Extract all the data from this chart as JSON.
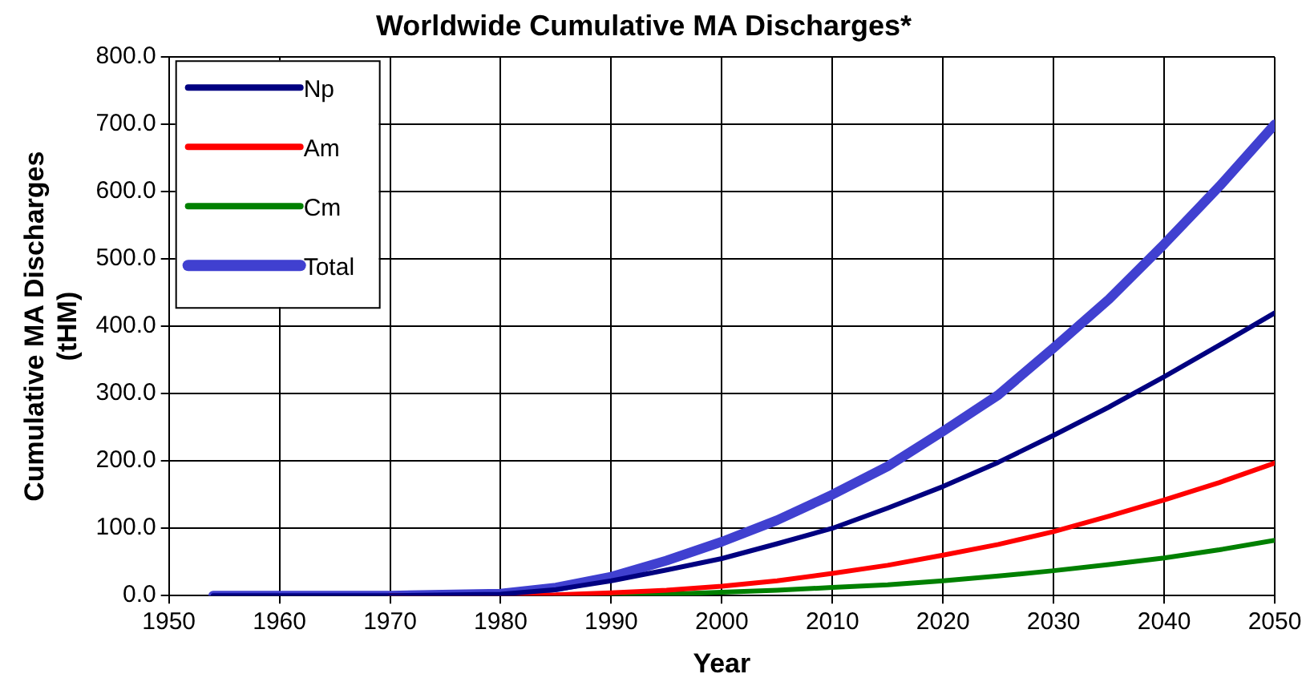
{
  "chart_data": {
    "type": "line",
    "title": "Worldwide Cumulative MA Discharges*",
    "xlabel": "Year",
    "ylabel": "Cumulative MA Discharges\n(tHM)",
    "x": [
      1954,
      1960,
      1970,
      1980,
      1985,
      1990,
      1995,
      2000,
      2005,
      2010,
      2015,
      2020,
      2025,
      2030,
      2035,
      2040,
      2045,
      2050
    ],
    "series": [
      {
        "name": "Np",
        "color": "#000080",
        "values": [
          0,
          0,
          0,
          2,
          9,
          22,
          38,
          55,
          77,
          100,
          130,
          162,
          198,
          238,
          280,
          325,
          372,
          420
        ]
      },
      {
        "name": "Am",
        "color": "#ff0000",
        "values": [
          null,
          null,
          0,
          0,
          1,
          4,
          8,
          14,
          22,
          33,
          45,
          60,
          76,
          95,
          118,
          142,
          168,
          197
        ]
      },
      {
        "name": "Cm",
        "color": "#008000",
        "values": [
          null,
          null,
          null,
          null,
          0,
          1,
          2,
          5,
          8,
          12,
          16,
          22,
          29,
          37,
          46,
          56,
          68,
          82
        ]
      },
      {
        "name": "Total",
        "color": "#4040d0",
        "values": [
          0,
          0,
          0,
          3,
          12,
          28,
          52,
          80,
          112,
          150,
          192,
          244,
          298,
          368,
          440,
          522,
          608,
          700
        ]
      }
    ],
    "xlim": [
      1950,
      2050
    ],
    "xticks": [
      1950,
      1960,
      1970,
      1980,
      1990,
      2000,
      2010,
      2020,
      2030,
      2040,
      2050
    ],
    "ylim": [
      0,
      800
    ],
    "yticks": [
      {
        "value": 0,
        "label": "0.0"
      },
      {
        "value": 100,
        "label": "100.0"
      },
      {
        "value": 200,
        "label": "200.0"
      },
      {
        "value": 300,
        "label": "300.0"
      },
      {
        "value": 400,
        "label": "400.0"
      },
      {
        "value": 500,
        "label": "500.0"
      },
      {
        "value": 600,
        "label": "600.0"
      },
      {
        "value": 700,
        "label": "700.0"
      },
      {
        "value": 800,
        "label": "800.0"
      }
    ],
    "grid": true,
    "legend": "top left",
    "marker": "none",
    "line_style": "solid"
  }
}
